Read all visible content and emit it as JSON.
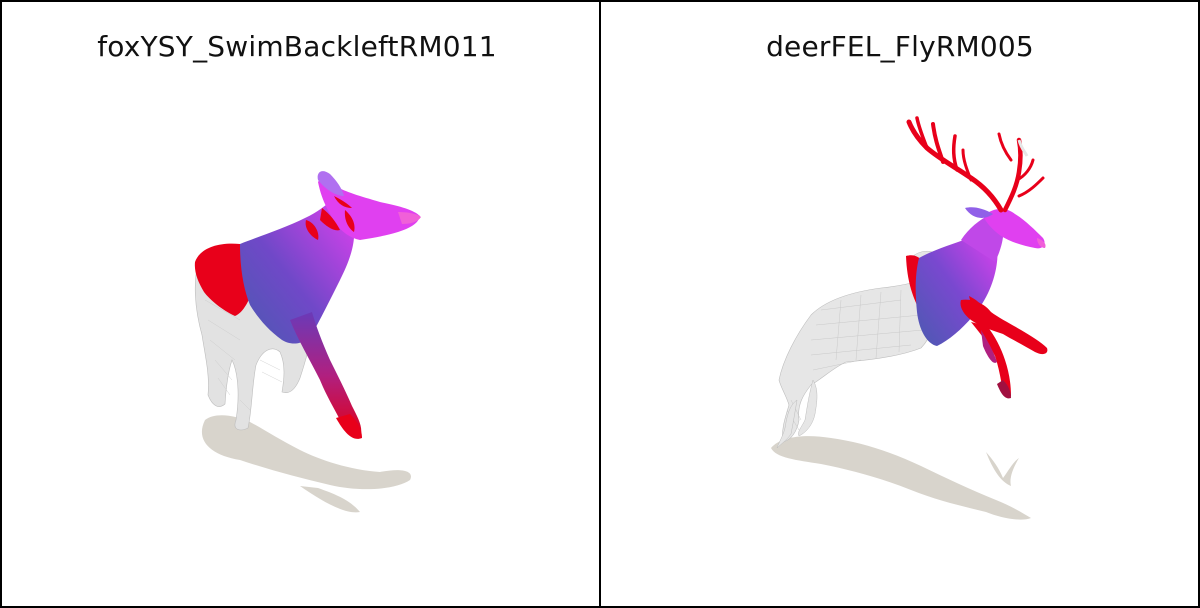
{
  "panels": [
    {
      "title": "foxYSY_SwimBackleftRM011",
      "subject": "fox-mesh-render"
    },
    {
      "title": "deerFEL_FlyRM005",
      "subject": "deer-mesh-render"
    }
  ],
  "colors": {
    "border": "#000000",
    "shadow": "#d8d4cc",
    "mesh_gray": "#e2e2e2",
    "highlight_red": "#e8001a",
    "gradient_magenta": "#e040f0",
    "gradient_purple": "#7048c8",
    "gradient_blue": "#4a5ab0"
  }
}
